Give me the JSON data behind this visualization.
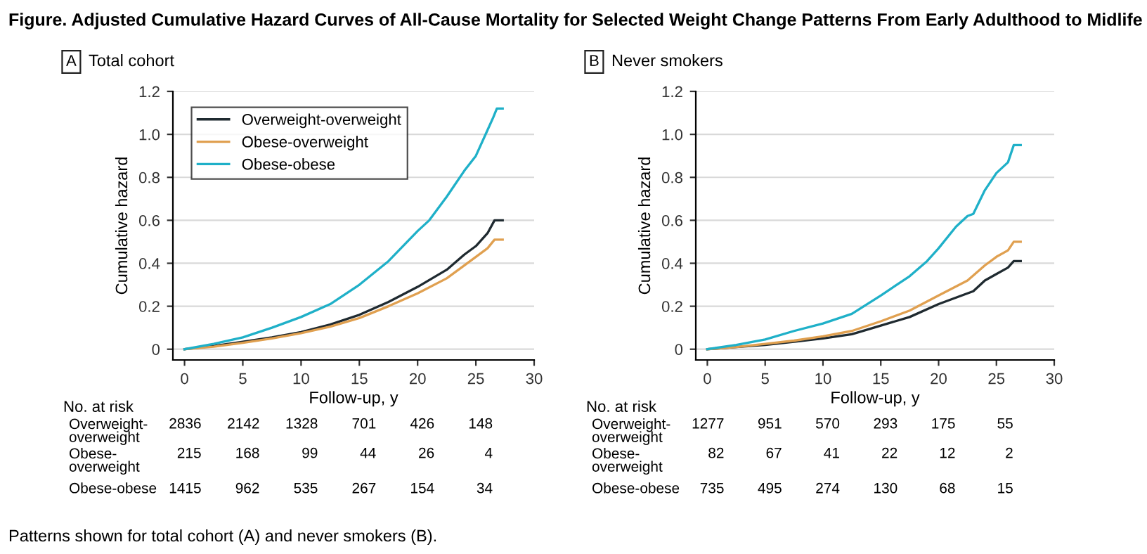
{
  "chart_data": [
    {
      "type": "line",
      "title": "Total cohort",
      "xlabel": "Follow-up, y",
      "ylabel": "Cumulative hazard",
      "annotations": [
        "Figure. Adjusted Cumulative Hazard Curves of All-Cause Mortality for Selected Weight Change Patterns From Early Adulthood to Midlife",
        "Patterns shown for total cohort (A) and never smokers (B).",
        "A",
        "No. at risk",
        "Overweight-\noverweight",
        "2836",
        "2142",
        "1328",
        "701",
        "426",
        "148",
        "Obese-\noverweight",
        "215",
        "168",
        "99",
        "44",
        "26",
        "4",
        "Obese-obese",
        "1415",
        "962",
        "535",
        "267",
        "154",
        "34"
      ],
      "xlim": [
        -1,
        30
      ],
      "xticks": [
        0,
        5,
        10,
        15,
        20,
        25,
        30
      ],
      "ylim": [
        -0.05,
        1.2
      ],
      "yticks": [
        0,
        {
          "value": 0.2,
          "label": "0.2"
        },
        {
          "value": 0.4,
          "label": "0.4"
        },
        {
          "value": 0.6,
          "label": "0.6"
        },
        {
          "value": 0.8,
          "label": "0.8"
        },
        {
          "value": 1.0,
          "label": "1.0"
        },
        {
          "value": 1.2,
          "label": "1.2"
        }
      ],
      "grid": "y",
      "legend": "top left",
      "series": [
        {
          "name": "Overweight-overweight",
          "color": "#1f2a30",
          "x": [
            0,
            2.5,
            5,
            7.5,
            10,
            12.5,
            15,
            17.5,
            20,
            22.5,
            24,
            25,
            26,
            26.6,
            27.3
          ],
          "values": [
            0,
            0.015,
            0.035,
            0.055,
            0.08,
            0.115,
            0.16,
            0.22,
            0.29,
            0.37,
            0.44,
            0.48,
            0.54,
            0.6,
            0.6
          ]
        },
        {
          "name": "Obese-overweight",
          "color": "#e0a050",
          "x": [
            0,
            2.5,
            5,
            7.5,
            10,
            12.5,
            15,
            17.5,
            20,
            22.5,
            24,
            25,
            26,
            26.6,
            27.3
          ],
          "values": [
            0,
            0.012,
            0.03,
            0.05,
            0.075,
            0.105,
            0.145,
            0.2,
            0.26,
            0.33,
            0.39,
            0.43,
            0.47,
            0.51,
            0.51
          ]
        },
        {
          "name": "Obese-obese",
          "color": "#1fb0c8",
          "x": [
            0,
            2.5,
            5,
            7.5,
            10,
            12.5,
            15,
            17.5,
            20,
            21,
            22.5,
            24,
            25,
            26,
            26.5,
            26.8,
            27.3
          ],
          "values": [
            0,
            0.025,
            0.055,
            0.1,
            0.15,
            0.21,
            0.3,
            0.41,
            0.55,
            0.6,
            0.71,
            0.83,
            0.9,
            1.02,
            1.08,
            1.12,
            1.12
          ]
        }
      ]
    },
    {
      "type": "line",
      "title": "Never smokers",
      "xlabel": "Follow-up, y",
      "ylabel": "Cumulative hazard",
      "annotations": [
        "B",
        "No. at risk",
        "Overweight-\noverweight",
        "1277",
        "951",
        "570",
        "293",
        "175",
        "55",
        "Obese-\noverweight",
        "82",
        "67",
        "41",
        "22",
        "12",
        "2",
        "Obese-obese",
        "735",
        "495",
        "274",
        "130",
        "68",
        "15"
      ],
      "xlim": [
        -1,
        30
      ],
      "xticks": [
        0,
        5,
        10,
        15,
        20,
        25,
        30
      ],
      "ylim": [
        -0.05,
        1.2
      ],
      "yticks": [
        0,
        {
          "value": 0.2,
          "label": "0.2"
        },
        {
          "value": 0.4,
          "label": "0.4"
        },
        {
          "value": 0.6,
          "label": "0.6"
        },
        {
          "value": 0.8,
          "label": "0.8"
        },
        {
          "value": 1.0,
          "label": "1.0"
        },
        {
          "value": 1.2,
          "label": "1.2"
        }
      ],
      "grid": "y",
      "series": [
        {
          "color": "#1f2a30",
          "x": [
            0,
            2.5,
            5,
            7.5,
            10,
            12.5,
            15,
            17.5,
            20,
            22.5,
            23,
            24,
            25,
            26,
            26.5,
            27.1
          ],
          "values": [
            0,
            0.01,
            0.02,
            0.035,
            0.05,
            0.07,
            0.11,
            0.15,
            0.21,
            0.26,
            0.27,
            0.32,
            0.35,
            0.38,
            0.41,
            0.41
          ]
        },
        {
          "color": "#e0a050",
          "x": [
            0,
            2.5,
            5,
            7.5,
            10,
            12.5,
            15,
            17.5,
            20,
            22.5,
            24,
            25,
            26,
            26.5,
            27.1
          ],
          "values": [
            0,
            0.01,
            0.025,
            0.04,
            0.06,
            0.085,
            0.13,
            0.18,
            0.25,
            0.32,
            0.39,
            0.43,
            0.46,
            0.5,
            0.5
          ]
        },
        {
          "color": "#1fb0c8",
          "x": [
            0,
            2.5,
            5,
            7.5,
            10,
            12.5,
            15,
            17.5,
            19,
            20,
            21.5,
            22.5,
            23,
            24,
            25,
            26,
            26.5,
            27.1
          ],
          "values": [
            0,
            0.02,
            0.045,
            0.085,
            0.12,
            0.165,
            0.25,
            0.34,
            0.41,
            0.47,
            0.57,
            0.62,
            0.63,
            0.74,
            0.82,
            0.87,
            0.95,
            0.95
          ]
        }
      ]
    }
  ]
}
